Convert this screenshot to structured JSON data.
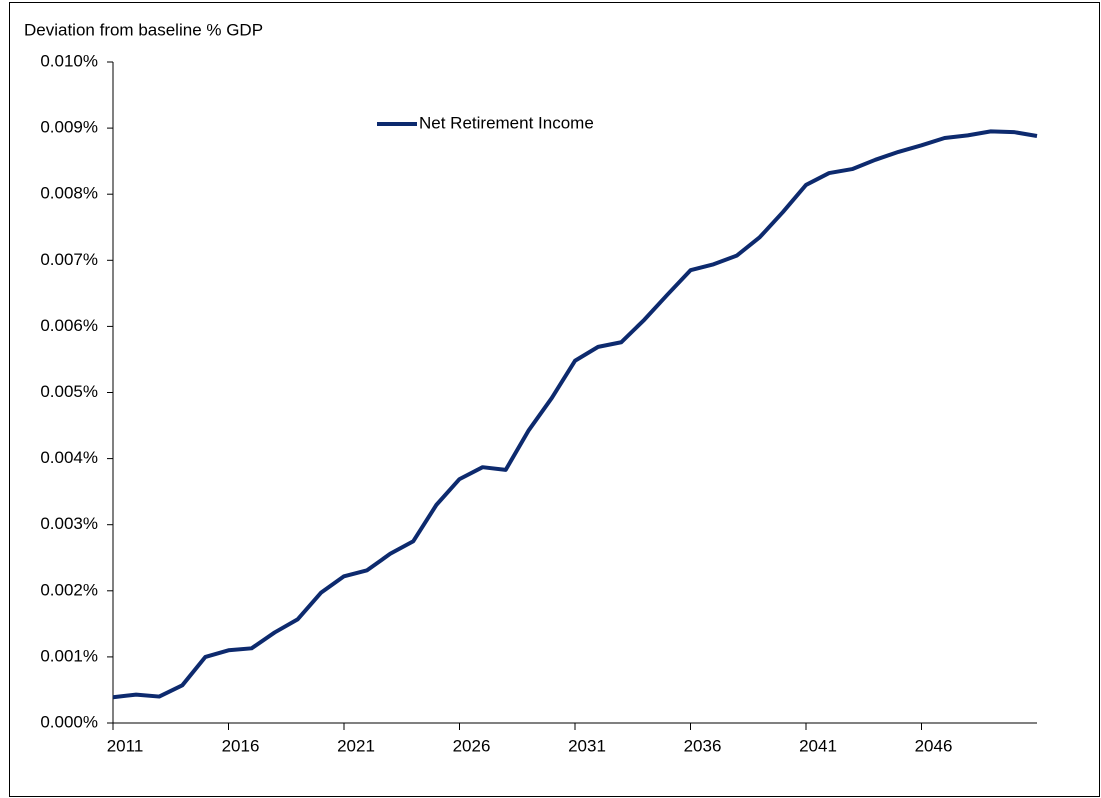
{
  "chart_data": {
    "type": "line",
    "title": "Deviation from baseline % GDP",
    "x": [
      2011,
      2012,
      2013,
      2014,
      2015,
      2016,
      2017,
      2018,
      2019,
      2020,
      2021,
      2022,
      2023,
      2024,
      2025,
      2026,
      2027,
      2028,
      2029,
      2030,
      2031,
      2032,
      2033,
      2034,
      2035,
      2036,
      2037,
      2038,
      2039,
      2040,
      2041,
      2042,
      2043,
      2044,
      2045,
      2046,
      2047,
      2048,
      2049,
      2050,
      2051
    ],
    "series": [
      {
        "name": "Net Retirement Income",
        "color": "#0d2a6e",
        "values": [
          0.00039,
          0.00043,
          0.0004,
          0.00057,
          0.001,
          0.0011,
          0.00113,
          0.00137,
          0.00157,
          0.00197,
          0.00222,
          0.00231,
          0.00256,
          0.00275,
          0.0033,
          0.00369,
          0.00387,
          0.00383,
          0.00443,
          0.00492,
          0.00548,
          0.00569,
          0.00576,
          0.0061,
          0.00648,
          0.00685,
          0.00694,
          0.00707,
          0.00735,
          0.00773,
          0.00814,
          0.00832,
          0.00838,
          0.00852,
          0.00864,
          0.00874,
          0.00885,
          0.00889,
          0.00895,
          0.00894,
          0.00888
        ]
      }
    ],
    "xlim": [
      2011,
      2051
    ],
    "xticks": [
      2011,
      2016,
      2021,
      2026,
      2031,
      2036,
      2041,
      2046
    ],
    "ylim": [
      0,
      0.01
    ],
    "yticks": [
      {
        "value": 0,
        "label": "0.000%"
      },
      {
        "value": 0.001,
        "label": "0.001%"
      },
      {
        "value": 0.002,
        "label": "0.002%"
      },
      {
        "value": 0.003,
        "label": "0.003%"
      },
      {
        "value": 0.004,
        "label": "0.004%"
      },
      {
        "value": 0.005,
        "label": "0.005%"
      },
      {
        "value": 0.006,
        "label": "0.006%"
      },
      {
        "value": 0.007,
        "label": "0.007%"
      },
      {
        "value": 0.008,
        "label": "0.008%"
      },
      {
        "value": 0.009,
        "label": "0.009%"
      },
      {
        "value": 0.01,
        "label": "0.010%"
      }
    ],
    "grid": false
  }
}
